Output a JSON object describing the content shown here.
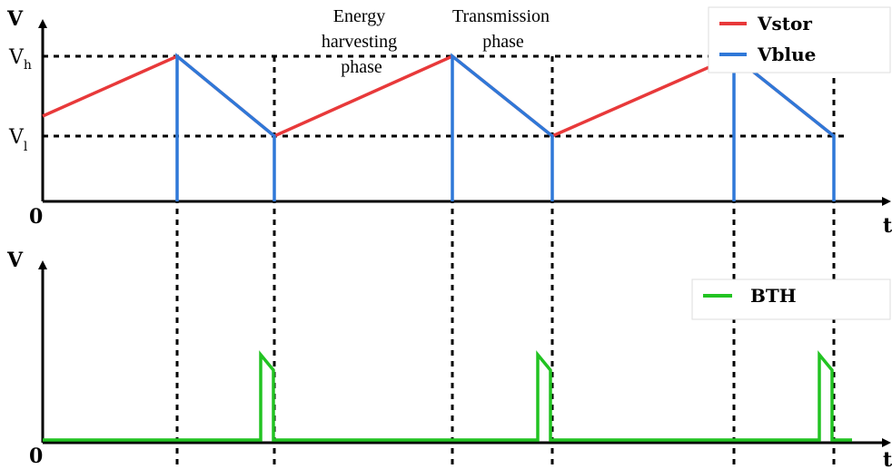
{
  "top_plot": {
    "y_label": "V",
    "x_label": "t",
    "origin": "0",
    "vh": {
      "base": "V",
      "sub": "h"
    },
    "vl": {
      "base": "V",
      "sub": "l"
    },
    "annotations": [
      {
        "lines": [
          "Energy",
          "harvesting",
          "phase"
        ]
      },
      {
        "lines": [
          "Transmission",
          "phase"
        ]
      }
    ],
    "legend": [
      "Vstor",
      "Vblue"
    ]
  },
  "bottom_plot": {
    "y_label": "V",
    "x_label": "t",
    "origin": "0",
    "legend": [
      "BTH"
    ]
  }
}
